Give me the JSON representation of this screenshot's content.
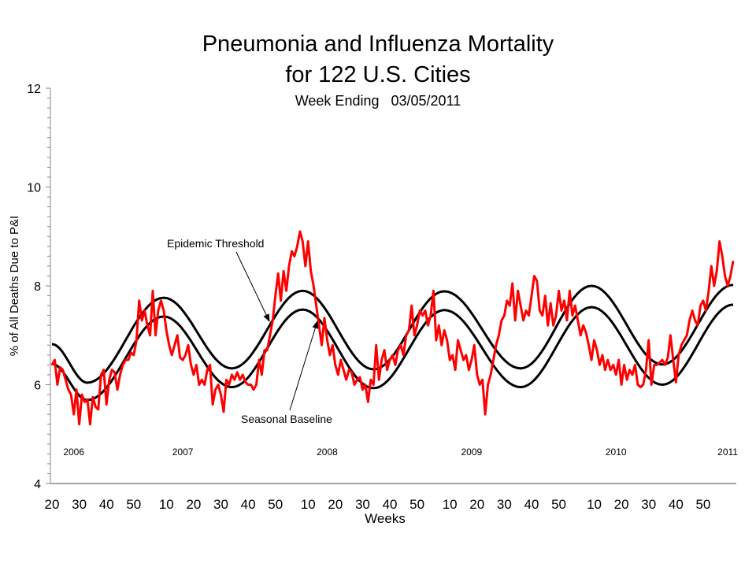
{
  "chart_data": {
    "type": "line",
    "title": "Pneumonia and Influenza Mortality",
    "title_line2": "for 122 U.S. Cities",
    "subtitle": "Week Ending   03/05/2011",
    "xlabel": "Weeks",
    "ylabel": "% of All Deaths Due to P&I",
    "ylim": [
      4,
      12
    ],
    "y_ticks": [
      "4",
      "6",
      "8",
      "10",
      "12"
    ],
    "y_minor_step": 0.2,
    "grid": false,
    "start": {
      "year": 2006,
      "week": 20
    },
    "end": {
      "year": 2011,
      "week": 9
    },
    "x_ticks": [
      {
        "label": "20",
        "year": 2006,
        "week": 20
      },
      {
        "label": "30",
        "year": 2006,
        "week": 30
      },
      {
        "label": "40",
        "year": 2006,
        "week": 40
      },
      {
        "label": "50",
        "year": 2006,
        "week": 50
      },
      {
        "label": "10",
        "year": 2007,
        "week": 10
      },
      {
        "label": "20",
        "year": 2007,
        "week": 20
      },
      {
        "label": "30",
        "year": 2007,
        "week": 30
      },
      {
        "label": "40",
        "year": 2007,
        "week": 40
      },
      {
        "label": "50",
        "year": 2007,
        "week": 50
      },
      {
        "label": "10",
        "year": 2008,
        "week": 10
      },
      {
        "label": "20",
        "year": 2008,
        "week": 20
      },
      {
        "label": "30",
        "year": 2008,
        "week": 30
      },
      {
        "label": "40",
        "year": 2008,
        "week": 40
      },
      {
        "label": "50",
        "year": 2008,
        "week": 50
      },
      {
        "label": "10",
        "year": 2009,
        "week": 10
      },
      {
        "label": "20",
        "year": 2009,
        "week": 20
      },
      {
        "label": "30",
        "year": 2009,
        "week": 30
      },
      {
        "label": "40",
        "year": 2009,
        "week": 40
      },
      {
        "label": "50",
        "year": 2009,
        "week": 50
      },
      {
        "label": "10",
        "year": 2010,
        "week": 10
      },
      {
        "label": "20",
        "year": 2010,
        "week": 20
      },
      {
        "label": "30",
        "year": 2010,
        "week": 30
      },
      {
        "label": "40",
        "year": 2010,
        "week": 40
      },
      {
        "label": "50",
        "year": 2010,
        "week": 50
      }
    ],
    "year_labels": [
      {
        "label": "2006",
        "year": 2006,
        "week": 28
      },
      {
        "label": "2007",
        "year": 2007,
        "week": 16
      },
      {
        "label": "2008",
        "year": 2008,
        "week": 17
      },
      {
        "label": "2009",
        "year": 2009,
        "week": 18
      },
      {
        "label": "2010",
        "year": 2010,
        "week": 18
      },
      {
        "label": "2011",
        "year": 2011,
        "week": 7
      }
    ],
    "series": [
      {
        "name": "P&I mortality",
        "color": "#ff0000",
        "weekly_values": [
          6.4,
          6.5,
          6.0,
          6.35,
          6.3,
          6.1,
          5.9,
          5.8,
          5.4,
          5.9,
          5.2,
          5.8,
          5.65,
          5.7,
          5.2,
          5.75,
          5.55,
          5.5,
          6.2,
          6.3,
          5.6,
          6.1,
          6.3,
          6.25,
          5.9,
          6.2,
          6.4,
          6.5,
          6.5,
          6.65,
          6.6,
          6.9,
          7.7,
          7.3,
          7.5,
          7.2,
          7.0,
          7.9,
          7.0,
          7.5,
          7.7,
          7.5,
          7.1,
          6.8,
          6.6,
          6.8,
          7.0,
          6.55,
          6.5,
          6.6,
          6.8,
          6.4,
          6.2,
          6.4,
          6.0,
          6.1,
          6.0,
          6.3,
          6.4,
          5.6,
          5.9,
          6.0,
          5.8,
          5.45,
          6.1,
          6.0,
          6.2,
          6.1,
          6.25,
          6.1,
          6.2,
          6.05,
          6.0,
          6.0,
          5.9,
          6.0,
          6.5,
          6.2,
          6.7,
          6.7,
          7.0,
          7.3,
          7.8,
          8.25,
          7.7,
          8.3,
          7.9,
          8.4,
          8.7,
          8.6,
          8.8,
          9.1,
          8.9,
          8.4,
          8.9,
          8.3,
          8.0,
          7.6,
          7.2,
          6.8,
          7.35,
          6.9,
          6.6,
          6.8,
          6.4,
          6.2,
          6.5,
          6.3,
          6.1,
          6.3,
          6.25,
          6.0,
          6.1,
          6.15,
          5.9,
          6.0,
          5.65,
          6.1,
          6.0,
          6.8,
          6.1,
          6.5,
          6.7,
          6.3,
          6.5,
          6.6,
          6.4,
          6.7,
          6.8,
          6.6,
          7.0,
          7.1,
          7.6,
          7.0,
          7.2,
          7.5,
          7.4,
          7.5,
          7.2,
          7.4,
          7.9,
          6.9,
          7.2,
          6.8,
          7.1,
          6.9,
          6.5,
          6.6,
          6.3,
          6.9,
          6.7,
          6.5,
          6.6,
          6.3,
          6.5,
          6.8,
          6.2,
          6.0,
          6.1,
          5.4,
          6.0,
          6.2,
          6.5,
          6.8,
          7.0,
          7.3,
          7.4,
          7.7,
          7.6,
          8.05,
          7.3,
          7.9,
          7.6,
          7.3,
          7.5,
          7.4,
          7.8,
          8.2,
          8.1,
          7.5,
          7.4,
          7.8,
          7.2,
          7.65,
          7.2,
          7.4,
          7.9,
          7.5,
          7.7,
          7.3,
          7.9,
          7.4,
          7.6,
          7.3,
          7.0,
          7.2,
          7.05,
          6.8,
          6.5,
          6.9,
          6.7,
          6.4,
          6.6,
          6.3,
          6.5,
          6.3,
          6.4,
          6.2,
          6.5,
          6.0,
          6.4,
          6.1,
          6.3,
          6.2,
          6.4,
          6.0,
          5.95,
          6.0,
          6.3,
          6.9,
          6.0,
          6.4,
          6.4,
          6.45,
          6.5,
          6.4,
          6.55,
          7.0,
          6.5,
          6.05,
          6.6,
          6.8,
          6.9,
          7.0,
          7.3,
          7.5,
          7.3,
          7.2,
          7.6,
          7.7,
          7.5,
          7.9,
          8.4,
          8.0,
          8.3,
          8.9,
          8.6,
          8.2,
          8.0,
          8.2,
          8.5
        ]
      },
      {
        "name": "Epidemic Threshold",
        "color": "#000000",
        "extrema": [
          {
            "year": 2006,
            "week": 20,
            "value": 6.82
          },
          {
            "year": 2006,
            "week": 33,
            "value": 6.04
          },
          {
            "year": 2007,
            "week": 9,
            "value": 7.76
          },
          {
            "year": 2007,
            "week": 34,
            "value": 6.33
          },
          {
            "year": 2008,
            "week": 8,
            "value": 7.9
          },
          {
            "year": 2008,
            "week": 34,
            "value": 6.31
          },
          {
            "year": 2009,
            "week": 8,
            "value": 7.89
          },
          {
            "year": 2009,
            "week": 36,
            "value": 6.33
          },
          {
            "year": 2010,
            "week": 9,
            "value": 8.0
          },
          {
            "year": 2010,
            "week": 35,
            "value": 6.41
          },
          {
            "year": 2011,
            "week": 9,
            "value": 8.02
          }
        ]
      },
      {
        "name": "Seasonal Baseline",
        "color": "#000000",
        "extrema": [
          {
            "year": 2006,
            "week": 20,
            "value": 6.42
          },
          {
            "year": 2006,
            "week": 33,
            "value": 5.69
          },
          {
            "year": 2007,
            "week": 9,
            "value": 7.38
          },
          {
            "year": 2007,
            "week": 34,
            "value": 5.95
          },
          {
            "year": 2008,
            "week": 8,
            "value": 7.52
          },
          {
            "year": 2008,
            "week": 34,
            "value": 5.93
          },
          {
            "year": 2009,
            "week": 8,
            "value": 7.51
          },
          {
            "year": 2009,
            "week": 36,
            "value": 5.95
          },
          {
            "year": 2010,
            "week": 9,
            "value": 7.57
          },
          {
            "year": 2010,
            "week": 35,
            "value": 6.0
          },
          {
            "year": 2011,
            "week": 9,
            "value": 7.62
          }
        ]
      }
    ],
    "annotations": [
      {
        "text": "Epidemic Threshold",
        "points_to": "Epidemic Threshold"
      },
      {
        "text": "Seasonal Baseline",
        "points_to": "Seasonal Baseline"
      }
    ]
  }
}
